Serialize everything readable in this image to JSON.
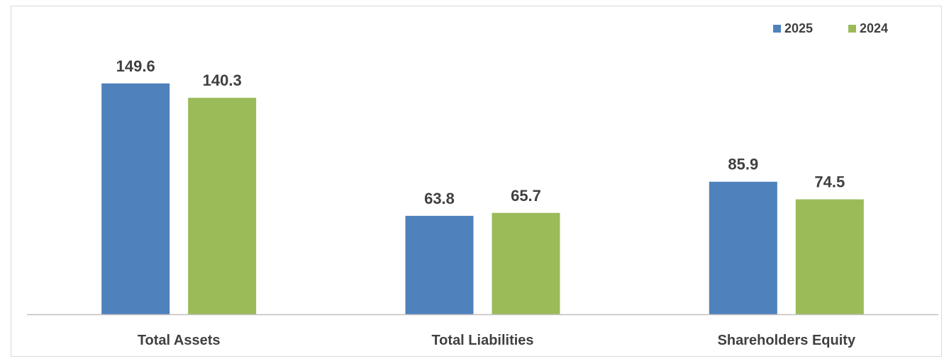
{
  "chart_data": {
    "type": "bar",
    "categories": [
      "Total Assets",
      "Total Liabilities",
      "Shareholders Equity"
    ],
    "series": [
      {
        "name": "2025",
        "values": [
          149.6,
          63.8,
          85.9
        ],
        "color": "#4f81bd"
      },
      {
        "name": "2024",
        "values": [
          140.3,
          65.7,
          74.5
        ],
        "color": "#9bbb59"
      }
    ],
    "ylim": [
      0,
      160
    ],
    "grid": false,
    "legend_position": "top-right",
    "axis_color": "#bfbfbf",
    "label_color": "#404040"
  }
}
